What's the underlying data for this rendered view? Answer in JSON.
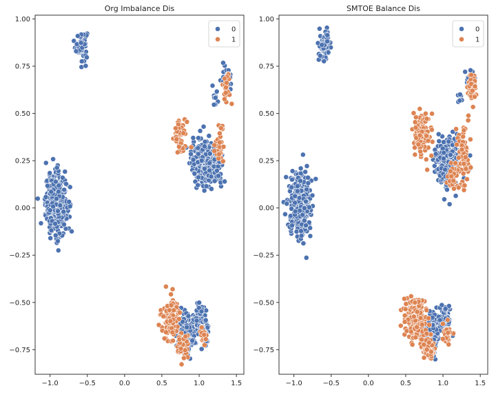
{
  "chart_data": [
    {
      "type": "scatter",
      "title": "Org Imbalance Dis",
      "xlim": [
        -1.2,
        1.6
      ],
      "ylim": [
        -0.88,
        1.02
      ],
      "xticks": [
        -1.0,
        -0.5,
        0.0,
        0.5,
        1.0,
        1.5
      ],
      "xtick_labels": [
        "−1.0",
        "−0.5",
        "0.0",
        "0.5",
        "1.0",
        "1.5"
      ],
      "yticks": [
        1.0,
        0.75,
        0.5,
        0.25,
        0.0,
        -0.25,
        -0.5,
        -0.75
      ],
      "ytick_labels": [
        "1.00",
        "0.75",
        "0.50",
        "0.25",
        "0.00",
        "−0.25",
        "−0.50",
        "−0.75"
      ],
      "grid": false,
      "legend": {
        "placement": "top-right",
        "entries": [
          "0",
          "1"
        ]
      },
      "series": [
        {
          "name": "0",
          "color": "#4c72b0",
          "clusters": [
            {
              "center": [
                -0.58,
                0.86
              ],
              "spread": [
                0.04,
                0.04
              ],
              "count": 60
            },
            {
              "center": [
                -0.92,
                0.02
              ],
              "spread": [
                0.07,
                0.08
              ],
              "count": 420
            },
            {
              "center": [
                1.06,
                0.24
              ],
              "spread": [
                0.08,
                0.06
              ],
              "count": 300
            },
            {
              "center": [
                1.23,
                0.22
              ],
              "spread": [
                0.05,
                0.04
              ],
              "count": 80
            },
            {
              "center": [
                1.37,
                0.68
              ],
              "spread": [
                0.03,
                0.03
              ],
              "count": 30
            },
            {
              "center": [
                1.22,
                0.59
              ],
              "spread": [
                0.02,
                0.03
              ],
              "count": 10
            },
            {
              "center": [
                0.83,
                -0.66
              ],
              "spread": [
                0.06,
                0.05
              ],
              "count": 200
            },
            {
              "center": [
                1.02,
                -0.58
              ],
              "spread": [
                0.04,
                0.04
              ],
              "count": 80
            },
            {
              "center": [
                1.07,
                -0.66
              ],
              "spread": [
                0.03,
                0.03
              ],
              "count": 40
            }
          ]
        },
        {
          "name": "1",
          "color": "#dd8452",
          "clusters": [
            {
              "center": [
                0.75,
                0.39
              ],
              "spread": [
                0.04,
                0.05
              ],
              "count": 50
            },
            {
              "center": [
                1.28,
                0.33
              ],
              "spread": [
                0.03,
                0.05
              ],
              "count": 30
            },
            {
              "center": [
                1.37,
                0.63
              ],
              "spread": [
                0.03,
                0.04
              ],
              "count": 30
            },
            {
              "center": [
                0.62,
                -0.58
              ],
              "spread": [
                0.06,
                0.05
              ],
              "count": 100
            },
            {
              "center": [
                0.78,
                -0.73
              ],
              "spread": [
                0.04,
                0.03
              ],
              "count": 40
            },
            {
              "center": [
                1.05,
                -0.68
              ],
              "spread": [
                0.03,
                0.02
              ],
              "count": 15
            }
          ]
        }
      ]
    },
    {
      "type": "scatter",
      "title": "SMTOE Balance Dis",
      "xlim": [
        -1.2,
        1.6
      ],
      "ylim": [
        -0.88,
        1.02
      ],
      "xticks": [
        -1.0,
        -0.5,
        0.0,
        0.5,
        1.0,
        1.5
      ],
      "xtick_labels": [
        "−1.0",
        "−0.5",
        "0.0",
        "0.5",
        "1.0",
        "1.5"
      ],
      "yticks": [
        1.0,
        0.75,
        0.5,
        0.25,
        0.0,
        -0.25,
        -0.5,
        -0.75
      ],
      "ytick_labels": [
        "1.00",
        "0.75",
        "0.50",
        "0.25",
        "0.00",
        "−0.25",
        "−0.50",
        "−0.75"
      ],
      "grid": false,
      "legend": {
        "placement": "top-right",
        "entries": [
          "0",
          "1"
        ]
      },
      "series": [
        {
          "name": "0",
          "color": "#4c72b0",
          "clusters": [
            {
              "center": [
                -0.58,
                0.86
              ],
              "spread": [
                0.04,
                0.04
              ],
              "count": 60
            },
            {
              "center": [
                -0.92,
                0.02
              ],
              "spread": [
                0.07,
                0.08
              ],
              "count": 420
            },
            {
              "center": [
                1.06,
                0.24
              ],
              "spread": [
                0.08,
                0.06
              ],
              "count": 260
            },
            {
              "center": [
                1.37,
                0.68
              ],
              "spread": [
                0.03,
                0.03
              ],
              "count": 25
            },
            {
              "center": [
                1.22,
                0.59
              ],
              "spread": [
                0.02,
                0.03
              ],
              "count": 8
            },
            {
              "center": [
                0.85,
                -0.66
              ],
              "spread": [
                0.05,
                0.05
              ],
              "count": 160
            },
            {
              "center": [
                1.03,
                -0.58
              ],
              "spread": [
                0.04,
                0.04
              ],
              "count": 60
            }
          ]
        },
        {
          "name": "1",
          "color": "#dd8452",
          "clusters": [
            {
              "center": [
                0.72,
                0.38
              ],
              "spread": [
                0.06,
                0.06
              ],
              "count": 120
            },
            {
              "center": [
                1.26,
                0.28
              ],
              "spread": [
                0.04,
                0.08
              ],
              "count": 80
            },
            {
              "center": [
                1.39,
                0.63
              ],
              "spread": [
                0.03,
                0.04
              ],
              "count": 50
            },
            {
              "center": [
                1.12,
                0.16
              ],
              "spread": [
                0.04,
                0.04
              ],
              "count": 30
            },
            {
              "center": [
                0.62,
                -0.59
              ],
              "spread": [
                0.07,
                0.06
              ],
              "count": 200
            },
            {
              "center": [
                0.8,
                -0.73
              ],
              "spread": [
                0.05,
                0.03
              ],
              "count": 80
            },
            {
              "center": [
                1.05,
                -0.67
              ],
              "spread": [
                0.03,
                0.03
              ],
              "count": 30
            }
          ]
        }
      ]
    }
  ]
}
